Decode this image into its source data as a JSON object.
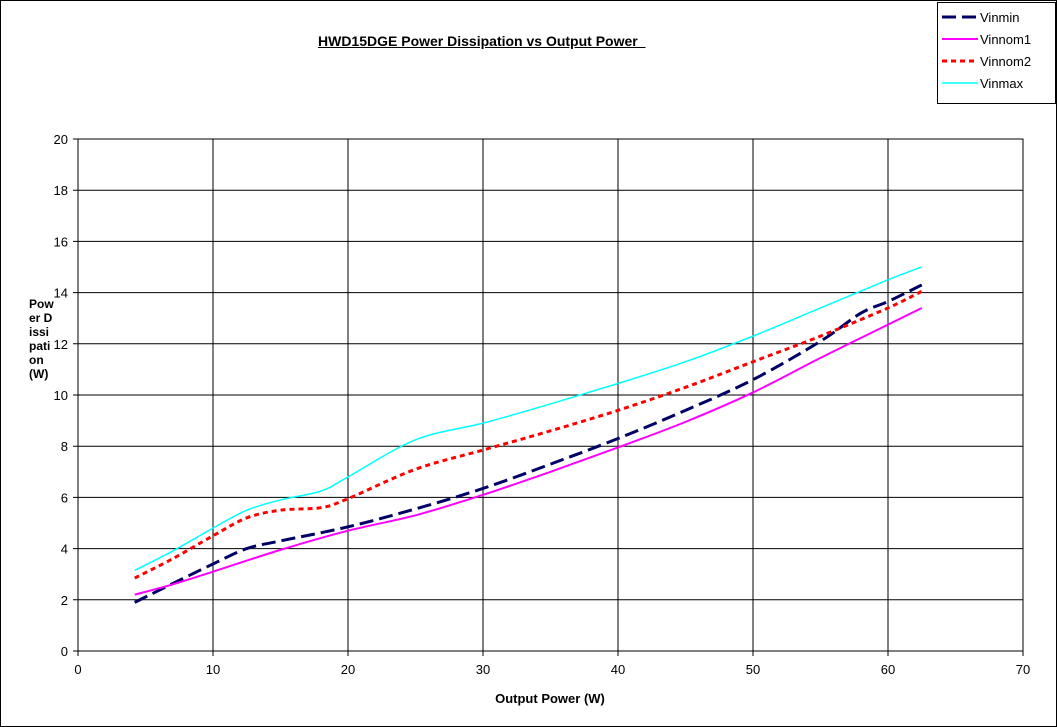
{
  "chart_data": {
    "type": "line",
    "title": "HWD15DGE Power Dissipation vs Output Power  ",
    "xlabel": "Output Power (W)",
    "ylabel": "Power Dissipation (W)",
    "xlim": [
      0,
      70
    ],
    "ylim": [
      0,
      20
    ],
    "xticks": [
      "0",
      "10",
      "20",
      "30",
      "40",
      "50",
      "60",
      "70"
    ],
    "yticks": [
      "0",
      "2",
      "4",
      "6",
      "8",
      "10",
      "12",
      "14",
      "16",
      "18",
      "20"
    ],
    "grid": true,
    "legend_position": "top-right",
    "series": [
      {
        "name": "Vinmin",
        "color": "#000066",
        "dash": "long-dash",
        "points": [
          [
            4.2,
            1.9
          ],
          [
            6.5,
            2.5
          ],
          [
            10,
            3.4
          ],
          [
            12.5,
            4.0
          ],
          [
            15,
            4.3
          ],
          [
            20,
            4.85
          ],
          [
            25,
            5.55
          ],
          [
            30,
            6.35
          ],
          [
            35,
            7.3
          ],
          [
            40,
            8.3
          ],
          [
            45,
            9.4
          ],
          [
            50,
            10.6
          ],
          [
            55,
            12.1
          ],
          [
            58,
            13.2
          ],
          [
            60,
            13.65
          ],
          [
            62.5,
            14.3
          ]
        ]
      },
      {
        "name": "Vinnom1",
        "color": "#FF00FF",
        "dash": "solid",
        "points": [
          [
            4.2,
            2.2
          ],
          [
            7,
            2.6
          ],
          [
            10,
            3.1
          ],
          [
            15,
            3.95
          ],
          [
            20,
            4.7
          ],
          [
            25,
            5.3
          ],
          [
            30,
            6.1
          ],
          [
            35,
            7.0
          ],
          [
            40,
            7.95
          ],
          [
            45,
            8.95
          ],
          [
            50,
            10.1
          ],
          [
            55,
            11.45
          ],
          [
            60,
            12.75
          ],
          [
            62.5,
            13.4
          ]
        ]
      },
      {
        "name": "Vinnom2",
        "color": "#FF0000",
        "dash": "dotted",
        "points": [
          [
            4.2,
            2.85
          ],
          [
            7,
            3.6
          ],
          [
            10,
            4.5
          ],
          [
            12.5,
            5.2
          ],
          [
            15,
            5.5
          ],
          [
            18,
            5.6
          ],
          [
            20,
            5.95
          ],
          [
            25,
            7.1
          ],
          [
            30,
            7.85
          ],
          [
            35,
            8.6
          ],
          [
            40,
            9.4
          ],
          [
            45,
            10.3
          ],
          [
            50,
            11.3
          ],
          [
            55,
            12.3
          ],
          [
            60,
            13.4
          ],
          [
            62.5,
            14.05
          ]
        ]
      },
      {
        "name": "Vinmax",
        "color": "#00FFFF",
        "dash": "solid",
        "points": [
          [
            4.2,
            3.15
          ],
          [
            7,
            3.9
          ],
          [
            10,
            4.8
          ],
          [
            12.5,
            5.5
          ],
          [
            15,
            5.9
          ],
          [
            18,
            6.25
          ],
          [
            20,
            6.8
          ],
          [
            25,
            8.25
          ],
          [
            30,
            8.9
          ],
          [
            35,
            9.65
          ],
          [
            40,
            10.45
          ],
          [
            45,
            11.3
          ],
          [
            50,
            12.3
          ],
          [
            55,
            13.4
          ],
          [
            60,
            14.5
          ],
          [
            62.5,
            15.0
          ]
        ]
      }
    ]
  }
}
